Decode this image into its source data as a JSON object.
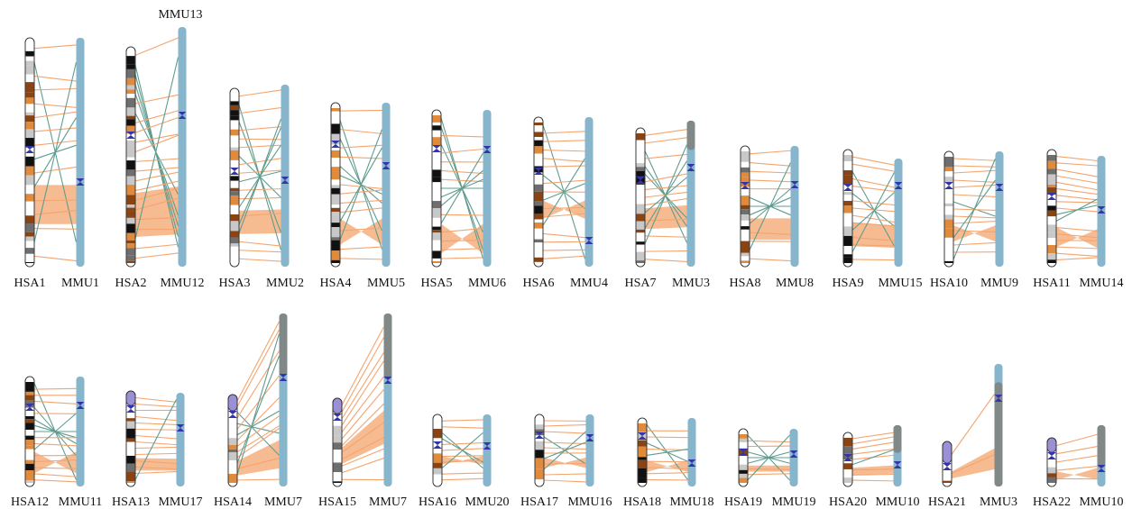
{
  "extra_label": "MMU13",
  "colors": {
    "human_band_dark": "#111111",
    "human_band_mid": "#6e6e6e",
    "human_band_light": "#c8c8c8",
    "human_band_brown": "#8a4414",
    "human_band_orange": "#e08a3c",
    "human_acrocentric": "#9b8fd6",
    "centromere": "#3333aa",
    "mouse_chromosome": "#86b5cc",
    "mouse_unaligned": "#808888",
    "synteny_orange": "#f4a46e",
    "synteny_inverted": "#5f9c90"
  },
  "pairs": [
    {
      "human": "HSA1",
      "mouse": "MMU1"
    },
    {
      "human": "HSA2",
      "mouse": "MMU12"
    },
    {
      "human": "HSA3",
      "mouse": "MMU2"
    },
    {
      "human": "HSA4",
      "mouse": "MMU5"
    },
    {
      "human": "HSA5",
      "mouse": "MMU6"
    },
    {
      "human": "HSA6",
      "mouse": "MMU4"
    },
    {
      "human": "HSA7",
      "mouse": "MMU3"
    },
    {
      "human": "HSA8",
      "mouse": "MMU8"
    },
    {
      "human": "HSA9",
      "mouse": "MMU15"
    },
    {
      "human": "HSA10",
      "mouse": "MMU9"
    },
    {
      "human": "HSA11",
      "mouse": "MMU14"
    },
    {
      "human": "HSA12",
      "mouse": "MMU11"
    },
    {
      "human": "HSA13",
      "mouse": "MMU17"
    },
    {
      "human": "HSA14",
      "mouse": "MMU7"
    },
    {
      "human": "HSA15",
      "mouse": "MMU7"
    },
    {
      "human": "HSA16",
      "mouse": "MMU20"
    },
    {
      "human": "HSA17",
      "mouse": "MMU16"
    },
    {
      "human": "HSA18",
      "mouse": "MMU18"
    },
    {
      "human": "HSA19",
      "mouse": "MMU19"
    },
    {
      "human": "HSA20",
      "mouse": "MMU10"
    },
    {
      "human": "HSA21",
      "mouse": "MMU3"
    },
    {
      "human": "HSA22",
      "mouse": "MMU10"
    }
  ]
}
